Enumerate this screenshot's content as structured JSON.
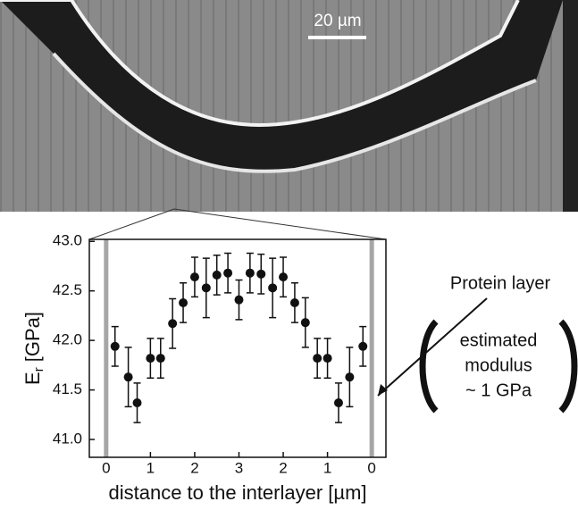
{
  "chart_data": {
    "type": "scatter",
    "scale_bar": "20 µm",
    "y_label": "E",
    "y_label_subscript": "r",
    "y_label_unit": "[GPa]",
    "x_label": "distance to the interlayer [µm]",
    "annotation": "Protein layer",
    "note_lines": [
      "estimated",
      "modulus",
      "~ 1 GPa"
    ],
    "x": [
      0.2,
      0.5,
      0.7,
      1.0,
      1.23,
      1.5,
      1.74,
      2.0,
      2.26,
      2.5,
      2.75,
      3.0,
      3.25,
      3.5,
      3.76,
      4.0,
      4.26,
      4.5,
      4.77,
      5.0,
      5.25,
      5.5,
      5.8
    ],
    "values": [
      41.94,
      41.63,
      41.37,
      41.82,
      41.82,
      42.17,
      42.38,
      42.64,
      42.53,
      42.66,
      42.68,
      42.41,
      42.68,
      42.67,
      42.53,
      42.64,
      42.38,
      42.18,
      41.82,
      41.82,
      41.37,
      41.63,
      41.94
    ],
    "errors": [
      0.2,
      0.3,
      0.2,
      0.2,
      0.2,
      0.25,
      0.2,
      0.2,
      0.3,
      0.2,
      0.2,
      0.2,
      0.2,
      0.2,
      0.3,
      0.2,
      0.2,
      0.25,
      0.2,
      0.2,
      0.2,
      0.3,
      0.2
    ],
    "color": "#111111",
    "layer_color": "#a6a6a6",
    "xlim": [
      -0.38,
      6.32
    ],
    "ylim": [
      40.82,
      43.02
    ],
    "xticks": [
      {
        "value": 0,
        "label": "0"
      },
      {
        "value": 1,
        "label": "1"
      },
      {
        "value": 2,
        "label": "2"
      },
      {
        "value": 3,
        "label": "3"
      },
      {
        "value": 4,
        "label": "2"
      },
      {
        "value": 5,
        "label": "1"
      },
      {
        "value": 6,
        "label": "0"
      }
    ],
    "yticks": [
      {
        "value": 41,
        "label": "41.0"
      },
      41.5,
      {
        "value": 42,
        "label": "42.0"
      },
      42.5,
      {
        "value": 43,
        "label": "43.0"
      }
    ]
  }
}
